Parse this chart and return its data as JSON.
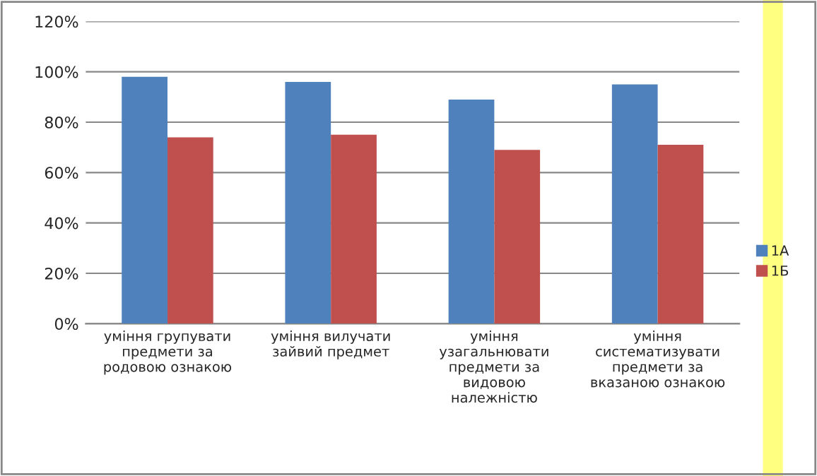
{
  "chart_data": {
    "type": "bar",
    "categories": [
      "уміння групувати\nпредмети за\nродовою ознакою",
      "уміння вилучати\nзайвий предмет",
      "уміння\nузагальнювати\nпредмети за\nвидовою\nналежністю",
      "уміння\nсистематизувати\nпредмети за\nвказаною ознакою"
    ],
    "series": [
      {
        "name": "1А",
        "color": "#4f81bd",
        "values": [
          98,
          96,
          89,
          95
        ]
      },
      {
        "name": "1Б",
        "color": "#c0504d",
        "values": [
          74,
          75,
          69,
          71
        ]
      }
    ],
    "ylim": [
      0,
      120
    ],
    "yticks": [
      {
        "value": 0,
        "label": "0%"
      },
      {
        "value": 20,
        "label": "20%"
      },
      {
        "value": 40,
        "label": "40%"
      },
      {
        "value": 60,
        "label": "60%"
      },
      {
        "value": 80,
        "label": "80%"
      },
      {
        "value": 100,
        "label": "100%"
      },
      {
        "value": 120,
        "label": "120%"
      }
    ],
    "grid": "y",
    "legend": "right"
  }
}
